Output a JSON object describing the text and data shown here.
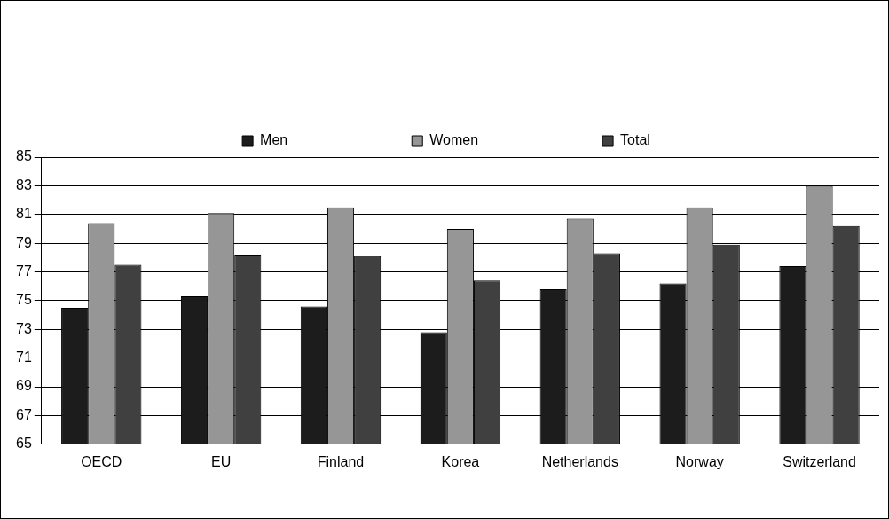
{
  "chart_data": {
    "type": "bar",
    "categories": [
      "OECD",
      "EU",
      "Finland",
      "Korea",
      "Netherlands",
      "Norway",
      "Switzerland"
    ],
    "series": [
      {
        "name": "Men",
        "color": "#1c1c1c",
        "values": [
          74.5,
          75.3,
          74.6,
          72.8,
          75.8,
          76.2,
          77.4
        ]
      },
      {
        "name": "Women",
        "color": "#969696",
        "values": [
          80.4,
          81.1,
          81.5,
          80.0,
          80.7,
          81.5,
          83.0
        ]
      },
      {
        "name": "Total",
        "color": "#404040",
        "values": [
          77.5,
          78.2,
          78.1,
          76.4,
          78.3,
          78.9,
          80.2
        ]
      }
    ],
    "ylim": [
      65,
      85
    ],
    "yticks": [
      65,
      67,
      69,
      71,
      73,
      75,
      77,
      79,
      81,
      83,
      85
    ],
    "grid": "y",
    "legend": "top"
  }
}
